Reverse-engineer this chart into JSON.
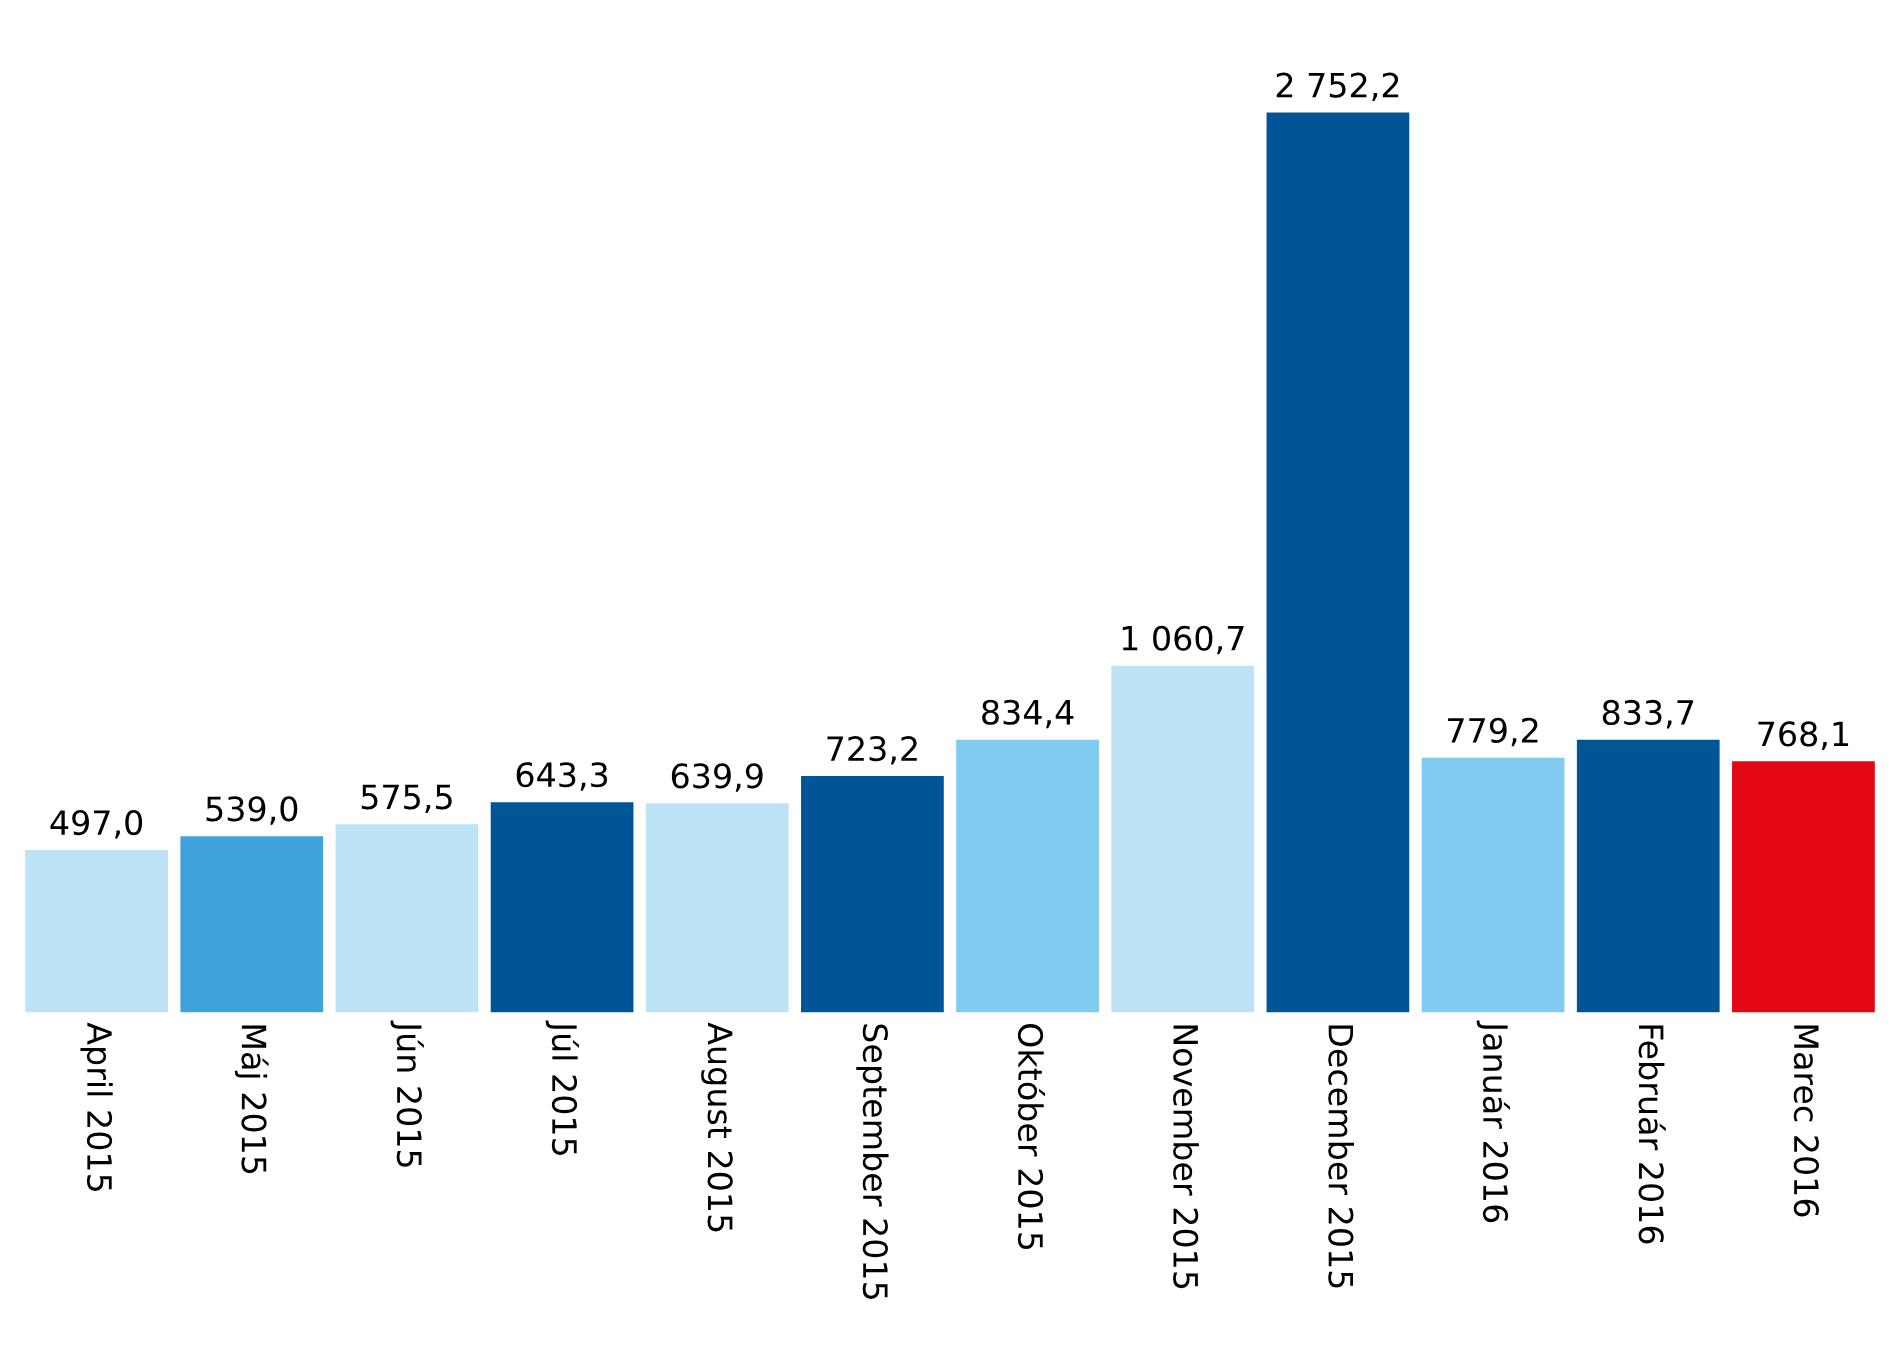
{
  "chart_data": {
    "type": "bar",
    "categories": [
      "April 2015",
      "Máj 2015",
      "Jún 2015",
      "Júl 2015",
      "August 2015",
      "September 2015",
      "Október 2015",
      "November 2015",
      "December 2015",
      "Január 2016",
      "Február 2016",
      "Marec 2016"
    ],
    "values": [
      497.0,
      539.0,
      575.5,
      643.3,
      639.9,
      723.2,
      834.4,
      1060.7,
      2752.2,
      779.2,
      833.7,
      768.1
    ],
    "value_labels": [
      "497,0",
      "539,0",
      "575,5",
      "643,3",
      "639,9",
      "723,2",
      "834,4",
      "1 060,7",
      "2 752,2",
      "779,2",
      "833,7",
      "768,1"
    ],
    "colors": [
      "#bde3f7",
      "#3fa3d9",
      "#bde3f7",
      "#005596",
      "#bde3f7",
      "#005596",
      "#80ccf0",
      "#bde3f7",
      "#005596",
      "#80ccf0",
      "#005596",
      "#e30613"
    ]
  }
}
